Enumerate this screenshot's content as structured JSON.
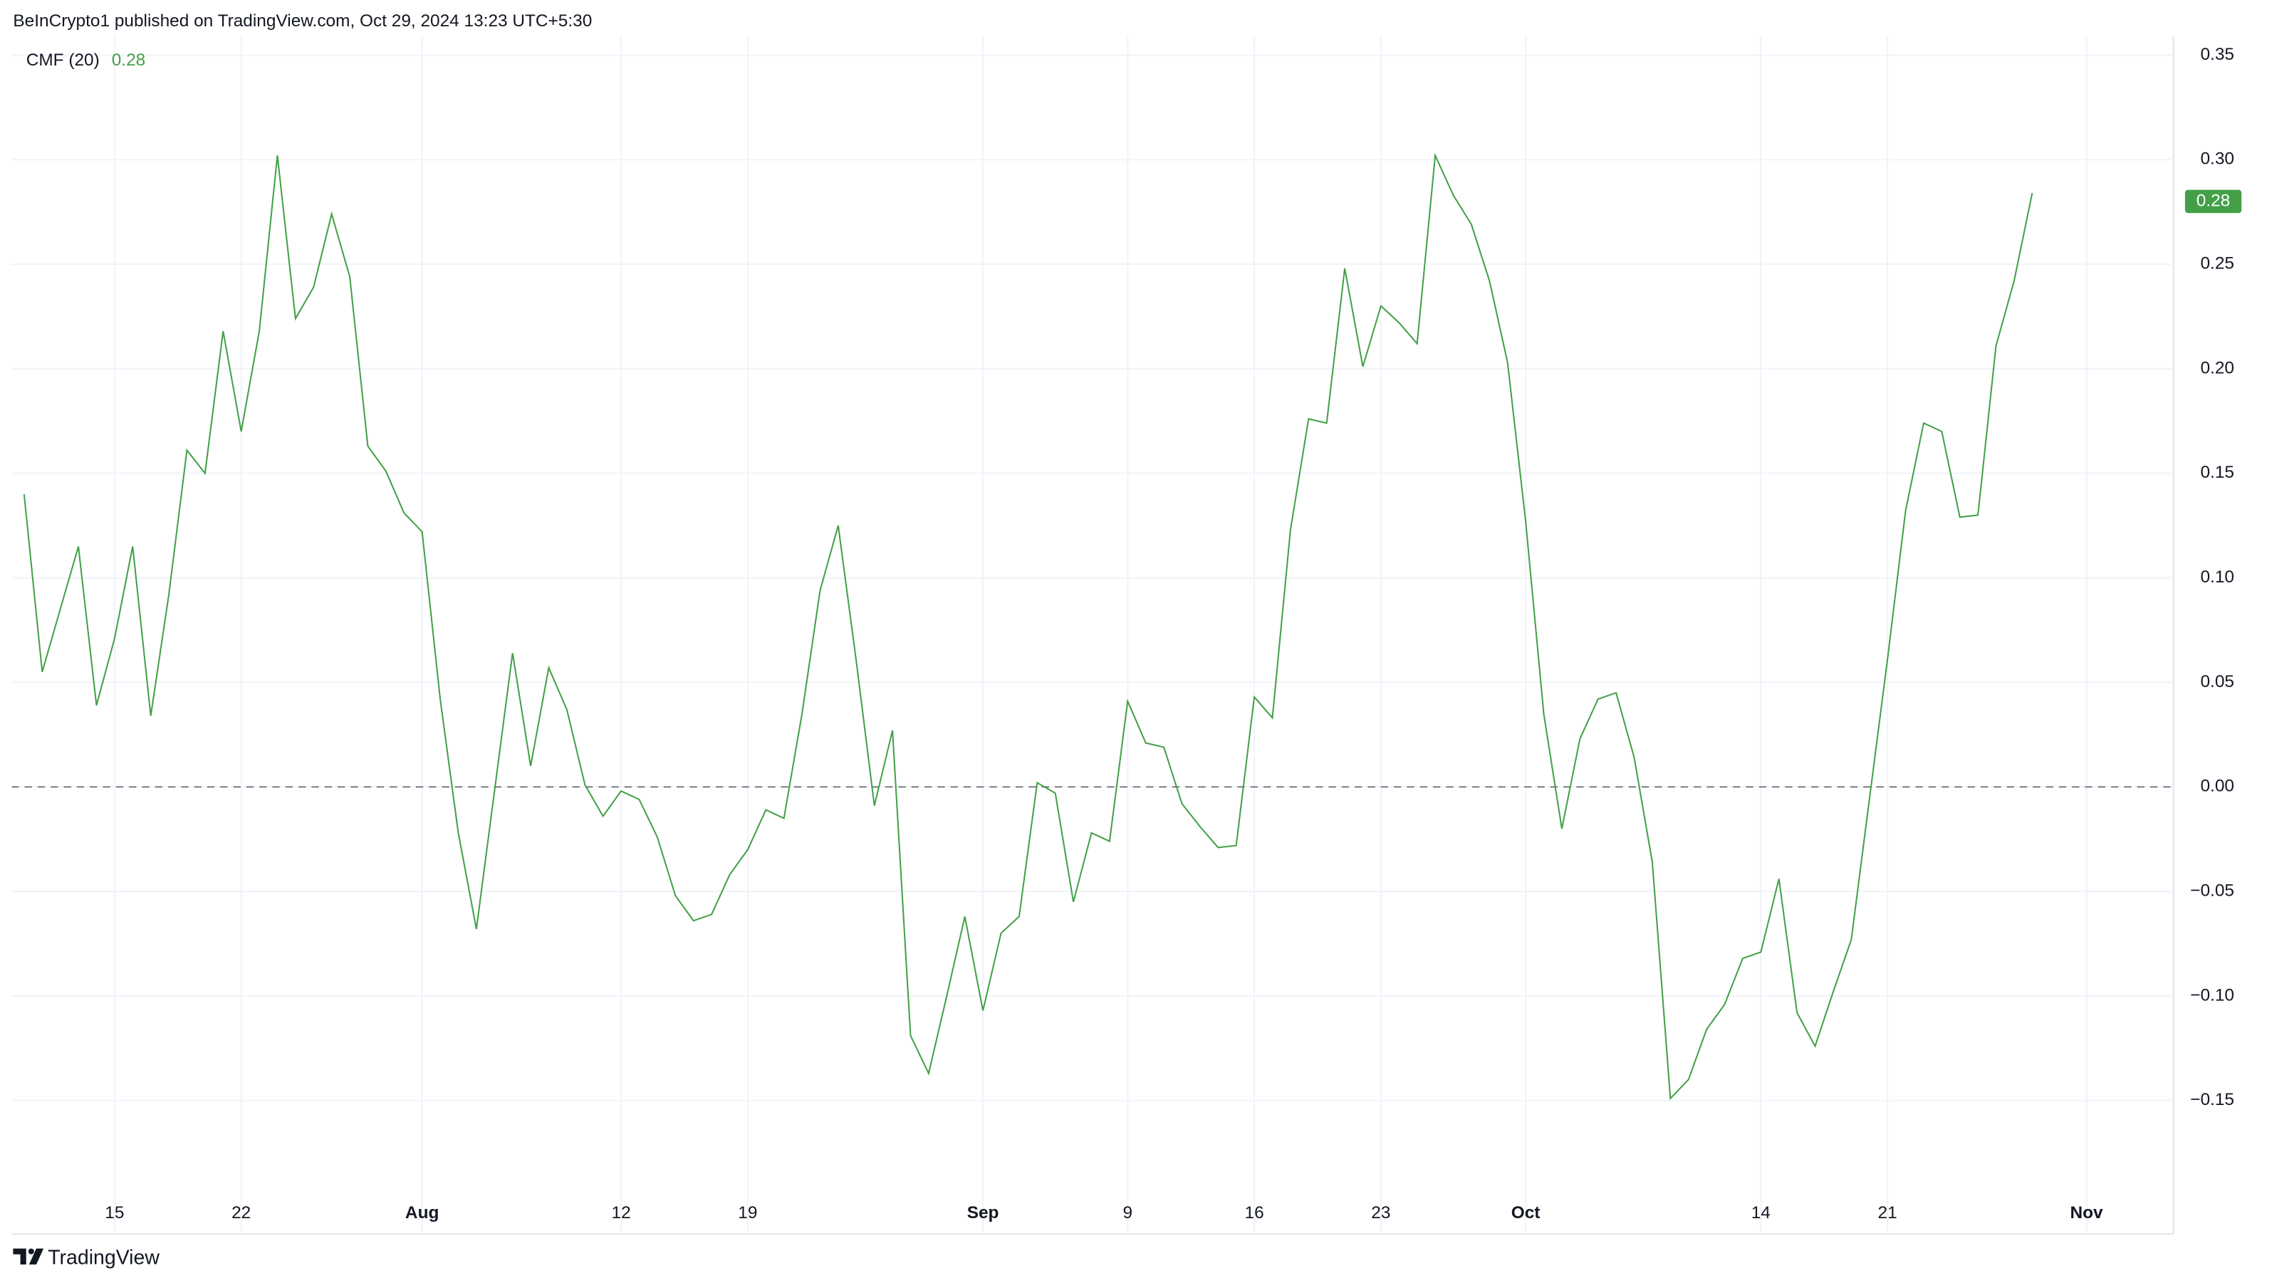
{
  "header": {
    "text": "BeInCrypto1 published on TradingView.com, Oct 29, 2024 13:23 UTC+5:30"
  },
  "footer": {
    "brand": "TradingView"
  },
  "chart_data": {
    "type": "line",
    "categories": [
      null,
      null,
      null,
      null,
      null,
      "15",
      null,
      null,
      null,
      null,
      null,
      null,
      "22",
      null,
      null,
      null,
      null,
      null,
      null,
      null,
      null,
      null,
      "Aug",
      null,
      null,
      null,
      null,
      null,
      null,
      null,
      null,
      null,
      null,
      "12",
      null,
      null,
      null,
      null,
      null,
      null,
      "19",
      null,
      null,
      null,
      null,
      null,
      null,
      null,
      null,
      null,
      null,
      null,
      null,
      "Sep",
      null,
      null,
      null,
      null,
      null,
      null,
      null,
      "9",
      null,
      null,
      null,
      null,
      null,
      null,
      "16",
      null,
      null,
      null,
      null,
      null,
      null,
      "23",
      null,
      null,
      null,
      null,
      null,
      null,
      null,
      "Oct",
      null,
      null,
      null,
      null,
      null,
      null,
      null,
      null,
      null,
      null,
      null,
      null,
      "14",
      null,
      null,
      null,
      null,
      null,
      null,
      "21",
      null,
      null,
      null,
      null,
      null,
      null,
      null,
      null,
      null,
      null,
      "Nov"
    ],
    "series": [
      {
        "name": "CMF (20)",
        "color": "#43a047",
        "last_value": 0.28,
        "values": [
          0.14,
          0.055,
          0.085,
          0.115,
          0.039,
          0.071,
          0.115,
          0.034,
          0.092,
          0.161,
          0.15,
          0.218,
          0.17,
          0.218,
          0.302,
          0.224,
          0.239,
          0.274,
          0.244,
          0.163,
          0.151,
          0.131,
          0.122,
          0.042,
          -0.022,
          -0.068,
          -0.002,
          0.064,
          0.01,
          0.057,
          0.037,
          0.001,
          -0.014,
          -0.002,
          -0.006,
          -0.024,
          -0.052,
          -0.064,
          -0.061,
          -0.042,
          -0.03,
          -0.011,
          -0.015,
          0.035,
          0.094,
          0.125,
          0.06,
          -0.009,
          0.027,
          -0.119,
          -0.137,
          -0.1,
          -0.062,
          -0.107,
          -0.07,
          -0.062,
          0.002,
          -0.003,
          -0.055,
          -0.022,
          -0.026,
          0.041,
          0.021,
          0.019,
          -0.008,
          -0.019,
          -0.029,
          -0.028,
          0.043,
          0.033,
          0.123,
          0.176,
          0.174,
          0.248,
          0.201,
          0.23,
          0.222,
          0.212,
          0.302,
          0.283,
          0.269,
          0.242,
          0.203,
          0.127,
          0.035,
          -0.02,
          0.023,
          0.042,
          0.045,
          0.014,
          -0.036,
          -0.149,
          -0.14,
          -0.116,
          -0.104,
          -0.082,
          -0.079,
          -0.044,
          -0.108,
          -0.124,
          -0.098,
          -0.073,
          -0.006,
          0.061,
          0.132,
          0.174,
          0.17,
          0.129,
          0.13,
          0.211,
          0.242,
          0.284,
          null,
          null,
          null
        ]
      }
    ],
    "ylim": [
      -0.2,
      0.36
    ],
    "yticks": [
      0.35,
      {
        "value": 0.3,
        "label": "0.30"
      },
      0.25,
      {
        "value": 0.2,
        "label": "0.20"
      },
      0.15,
      {
        "value": 0.1,
        "label": "0.10"
      },
      0.05,
      {
        "value": 0,
        "label": "0.00"
      },
      {
        "value": -0.05,
        "label": "−0.05"
      },
      {
        "value": -0.1,
        "label": "−0.10"
      },
      {
        "value": -0.15,
        "label": "−0.15"
      }
    ],
    "reference_line": 0,
    "grid": true
  }
}
